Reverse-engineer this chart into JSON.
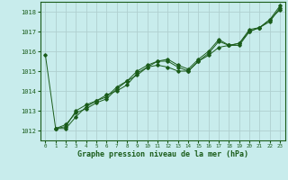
{
  "title": "Graphe pression niveau de la mer (hPa)",
  "bg_color": "#c8ecec",
  "grid_color": "#b0d0d0",
  "line_color": "#1a5c1a",
  "xlim": [
    -0.5,
    23.5
  ],
  "ylim": [
    1011.5,
    1018.5
  ],
  "xticks": [
    0,
    1,
    2,
    3,
    4,
    5,
    6,
    7,
    8,
    9,
    10,
    11,
    12,
    13,
    14,
    15,
    16,
    17,
    18,
    19,
    20,
    21,
    22,
    23
  ],
  "yticks": [
    1012,
    1013,
    1014,
    1015,
    1016,
    1017,
    1018
  ],
  "line1": [
    1015.8,
    1012.1,
    1012.1,
    1012.7,
    1013.2,
    1013.5,
    1013.8,
    1014.0,
    1014.3,
    1014.9,
    1015.2,
    1015.5,
    1015.5,
    1015.2,
    1015.0,
    1015.5,
    1015.9,
    1016.5,
    1016.3,
    1016.3,
    1017.0,
    1017.2,
    1017.6,
    1018.1
  ],
  "line2": [
    null,
    1012.1,
    1012.3,
    1012.9,
    1013.1,
    1013.4,
    1013.6,
    1014.1,
    1014.5,
    1014.8,
    1015.2,
    1015.3,
    1015.2,
    1015.0,
    1015.0,
    1015.5,
    1015.8,
    1016.2,
    1016.3,
    1016.4,
    1017.0,
    1017.2,
    1017.5,
    1018.2
  ],
  "line3": [
    null,
    1012.1,
    1012.2,
    1013.0,
    1013.3,
    1013.5,
    1013.7,
    1014.2,
    1014.5,
    1015.0,
    1015.3,
    1015.5,
    1015.6,
    1015.3,
    1015.1,
    1015.6,
    1016.0,
    1016.6,
    1016.3,
    1016.4,
    1017.1,
    1017.2,
    1017.6,
    1018.3
  ]
}
